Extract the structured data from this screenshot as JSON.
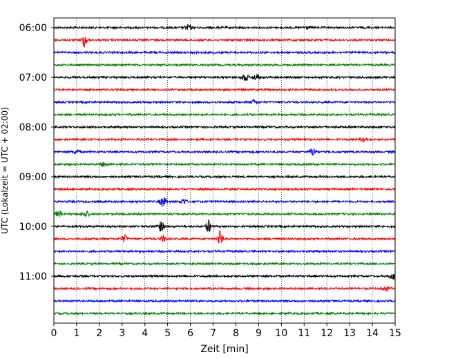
{
  "chart_data": {
    "type": "line",
    "title": "",
    "xlabel": "Zeit  [min]",
    "ylabel": "UTC (Lokalzeit = UTC + 02:00)",
    "xlim": [
      0,
      15
    ],
    "x_ticks": [
      "0",
      "1",
      "2",
      "3",
      "4",
      "5",
      "6",
      "7",
      "8",
      "9",
      "10",
      "11",
      "12",
      "13",
      "14",
      "15"
    ],
    "y_tick_labels": [
      "06:00",
      "07:00",
      "08:00",
      "09:00",
      "10:00",
      "11:00"
    ],
    "grid": "vertical dotted at each minute",
    "trace_start_times": [
      "06:00",
      "06:15",
      "06:30",
      "06:45",
      "07:00",
      "07:15",
      "07:30",
      "07:45",
      "08:00",
      "08:15",
      "08:30",
      "08:45",
      "09:00",
      "09:15",
      "09:30",
      "09:45",
      "10:00",
      "10:15",
      "10:30",
      "10:45",
      "11:00",
      "11:15",
      "11:30",
      "11:45"
    ],
    "colors_cycle": [
      "#000000",
      "#ff0000",
      "#0000ff",
      "#008000"
    ],
    "events": [
      {
        "row": 0,
        "minute": 5.9,
        "amplitude": 4
      },
      {
        "row": 0,
        "minute": 11.1,
        "amplitude": 2
      },
      {
        "row": 1,
        "minute": 1.35,
        "amplitude": 10
      },
      {
        "row": 4,
        "minute": 8.4,
        "amplitude": 5
      },
      {
        "row": 4,
        "minute": 8.9,
        "amplitude": 4
      },
      {
        "row": 6,
        "minute": 8.8,
        "amplitude": 3
      },
      {
        "row": 9,
        "minute": 13.6,
        "amplitude": 5
      },
      {
        "row": 10,
        "minute": 1.0,
        "amplitude": 3
      },
      {
        "row": 10,
        "minute": 11.4,
        "amplitude": 6
      },
      {
        "row": 11,
        "minute": 2.2,
        "amplitude": 3
      },
      {
        "row": 14,
        "minute": 4.8,
        "amplitude": 7
      },
      {
        "row": 14,
        "minute": 5.7,
        "amplitude": 4
      },
      {
        "row": 15,
        "minute": 0.2,
        "amplitude": 5
      },
      {
        "row": 15,
        "minute": 1.4,
        "amplitude": 4
      },
      {
        "row": 16,
        "minute": 4.7,
        "amplitude": 7
      },
      {
        "row": 16,
        "minute": 6.8,
        "amplitude": 9
      },
      {
        "row": 17,
        "minute": 3.1,
        "amplitude": 5
      },
      {
        "row": 17,
        "minute": 4.8,
        "amplitude": 4
      },
      {
        "row": 17,
        "minute": 7.3,
        "amplitude": 12
      },
      {
        "row": 20,
        "minute": 14.9,
        "amplitude": 4
      },
      {
        "row": 21,
        "minute": 14.6,
        "amplitude": 3
      }
    ]
  }
}
